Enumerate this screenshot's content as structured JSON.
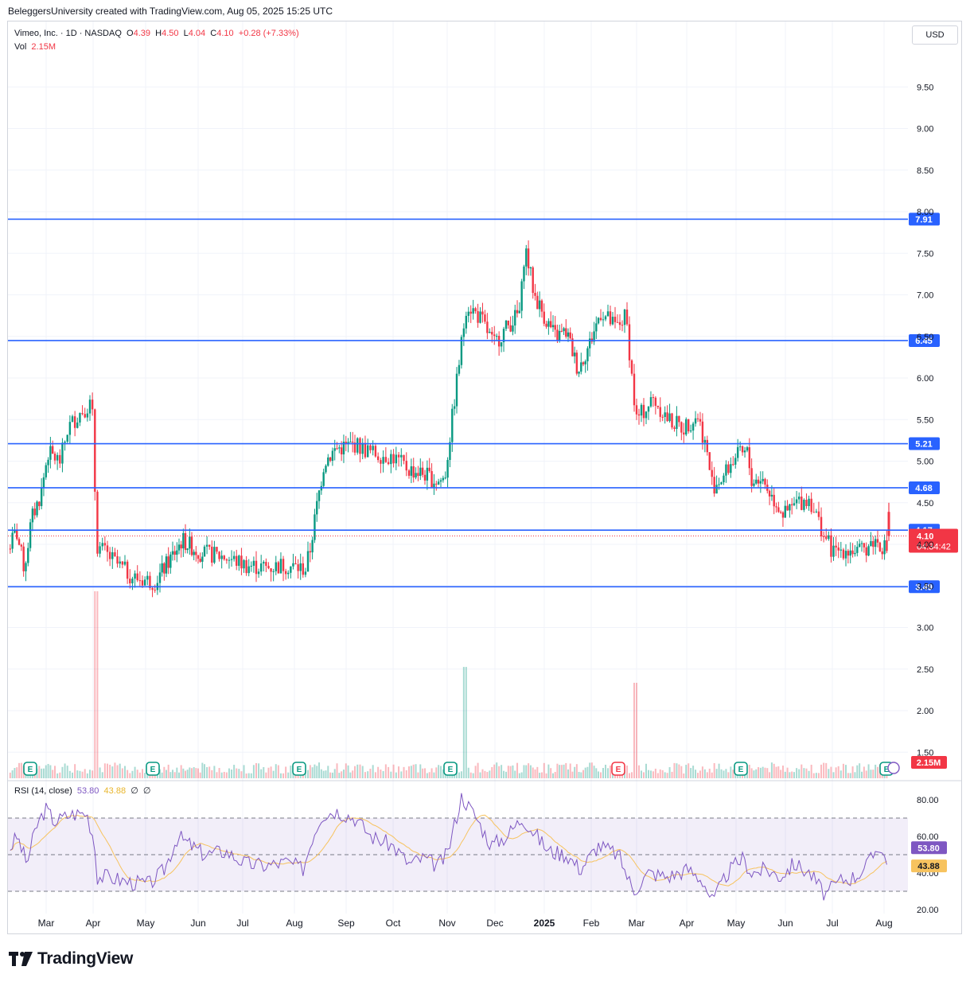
{
  "header": {
    "attribution": "BeleggersUniversity created with TradingView.com, Aug 05, 2025 15:25 UTC"
  },
  "legend": {
    "symbol": "Vimeo, Inc. · 1D · NASDAQ",
    "o_label": "O",
    "o": "4.39",
    "h_label": "H",
    "h": "4.50",
    "l_label": "L",
    "l": "4.04",
    "c_label": "C",
    "c": "4.10",
    "change": "+0.28 (+7.33%)",
    "vol_label": "Vol",
    "vol": "2.15M"
  },
  "currency_button": "USD",
  "rsi_legend": {
    "name": "RSI (14, close)",
    "rsi": "53.80",
    "ma": "43.88",
    "e1": "∅",
    "e2": "∅"
  },
  "branding": {
    "name": "TradingView"
  },
  "colors": {
    "up": "#089981",
    "down": "#f23645",
    "level": "#2962ff",
    "rsi": "#7e57c2",
    "rsi_ma": "#f7c35f",
    "price_badge": "#f23645"
  },
  "chart_data": {
    "type": "candlestick",
    "symbol": "Vimeo, Inc.",
    "interval": "1D",
    "exchange": "NASDAQ",
    "x_labels": [
      "Mar",
      "Apr",
      "May",
      "Jun",
      "Jul",
      "Aug",
      "Sep",
      "Oct",
      "Nov",
      "Dec",
      "2025",
      "Feb",
      "Mar",
      "Apr",
      "May",
      "Jun",
      "Jul",
      "Aug"
    ],
    "price_axis_ticks": [
      "9.50",
      "9.00",
      "8.50",
      "8.00",
      "7.50",
      "7.00",
      "6.50",
      "6.00",
      "5.50",
      "5.00",
      "4.50",
      "4.00",
      "3.50",
      "3.00",
      "2.50",
      "2.00",
      "1.50"
    ],
    "price_range": [
      1.3,
      9.9
    ],
    "horizontal_levels": [
      {
        "price": 7.91,
        "label": "7.91"
      },
      {
        "price": 6.45,
        "label": "6.45"
      },
      {
        "price": 5.21,
        "label": "5.21"
      },
      {
        "price": 4.68,
        "label": "4.68"
      },
      {
        "price": 4.17,
        "label": "4.17"
      },
      {
        "price": 3.49,
        "label": "3.49"
      }
    ],
    "last_price": {
      "label": "4.10",
      "countdown": "04:34:42"
    },
    "volume_badge": "2.15M",
    "price_path": [
      {
        "m": 0.0,
        "p": 3.95
      },
      {
        "m": 0.18,
        "p": 4.15
      },
      {
        "m": 0.35,
        "p": 3.7
      },
      {
        "m": 0.5,
        "p": 4.3
      },
      {
        "m": 0.7,
        "p": 4.6
      },
      {
        "m": 0.85,
        "p": 5.1
      },
      {
        "m": 1.1,
        "p": 5.0
      },
      {
        "m": 1.25,
        "p": 5.4
      },
      {
        "m": 1.5,
        "p": 5.6
      },
      {
        "m": 1.7,
        "p": 5.7
      },
      {
        "m": 1.75,
        "p": 5.1
      },
      {
        "m": 1.78,
        "p": 4.0
      },
      {
        "m": 1.95,
        "p": 3.9
      },
      {
        "m": 2.2,
        "p": 3.75
      },
      {
        "m": 2.5,
        "p": 3.6
      },
      {
        "m": 2.9,
        "p": 3.55
      },
      {
        "m": 3.2,
        "p": 3.8
      },
      {
        "m": 3.5,
        "p": 4.05
      },
      {
        "m": 3.9,
        "p": 3.9
      },
      {
        "m": 4.4,
        "p": 3.85
      },
      {
        "m": 4.8,
        "p": 3.75
      },
      {
        "m": 5.2,
        "p": 3.72
      },
      {
        "m": 5.55,
        "p": 3.75
      },
      {
        "m": 5.95,
        "p": 3.7
      },
      {
        "m": 6.05,
        "p": 3.95
      },
      {
        "m": 6.2,
        "p": 4.5
      },
      {
        "m": 6.35,
        "p": 5.0
      },
      {
        "m": 6.6,
        "p": 5.15
      },
      {
        "m": 7.0,
        "p": 5.2
      },
      {
        "m": 7.3,
        "p": 5.1
      },
      {
        "m": 7.7,
        "p": 5.05
      },
      {
        "m": 8.0,
        "p": 4.9
      },
      {
        "m": 8.3,
        "p": 4.85
      },
      {
        "m": 8.6,
        "p": 4.75
      },
      {
        "m": 8.75,
        "p": 4.8
      },
      {
        "m": 9.2,
        "p": 6.9
      },
      {
        "m": 9.5,
        "p": 6.7
      },
      {
        "m": 9.75,
        "p": 6.4
      },
      {
        "m": 10.0,
        "p": 6.6
      },
      {
        "m": 10.3,
        "p": 6.8
      },
      {
        "m": 10.4,
        "p": 7.6
      },
      {
        "m": 10.6,
        "p": 7.0
      },
      {
        "m": 10.85,
        "p": 6.7
      },
      {
        "m": 11.05,
        "p": 6.5
      },
      {
        "m": 11.3,
        "p": 6.55
      },
      {
        "m": 11.55,
        "p": 6.1
      },
      {
        "m": 11.8,
        "p": 6.4
      },
      {
        "m": 12.05,
        "p": 6.8
      },
      {
        "m": 12.35,
        "p": 6.6
      },
      {
        "m": 12.55,
        "p": 6.75
      },
      {
        "m": 12.75,
        "p": 5.5
      },
      {
        "m": 12.9,
        "p": 5.6
      },
      {
        "m": 13.1,
        "p": 5.75
      },
      {
        "m": 13.4,
        "p": 5.5
      },
      {
        "m": 13.7,
        "p": 5.4
      },
      {
        "m": 14.0,
        "p": 5.55
      },
      {
        "m": 14.15,
        "p": 5.2
      },
      {
        "m": 14.3,
        "p": 4.7
      },
      {
        "m": 14.5,
        "p": 4.8
      },
      {
        "m": 14.75,
        "p": 5.05
      },
      {
        "m": 15.0,
        "p": 5.1
      },
      {
        "m": 15.1,
        "p": 4.75
      },
      {
        "m": 15.3,
        "p": 4.8
      },
      {
        "m": 15.55,
        "p": 4.55
      },
      {
        "m": 15.8,
        "p": 4.35
      },
      {
        "m": 16.05,
        "p": 4.5
      },
      {
        "m": 16.3,
        "p": 4.55
      },
      {
        "m": 16.55,
        "p": 4.15
      },
      {
        "m": 16.75,
        "p": 3.9
      },
      {
        "m": 17.0,
        "p": 3.95
      },
      {
        "m": 17.3,
        "p": 3.9
      },
      {
        "m": 17.6,
        "p": 4.05
      },
      {
        "m": 17.85,
        "p": 3.95
      },
      {
        "m": 18.05,
        "p": 3.75
      },
      {
        "m": 18.12,
        "p": 3.82
      }
    ],
    "last_candle": {
      "o": 4.39,
      "h": 4.5,
      "l": 4.04,
      "c": 4.1
    },
    "rsi": {
      "name": "RSI (14, close)",
      "value": 53.8,
      "ma": 43.88,
      "axis_ticks": [
        "80.00",
        "60.00",
        "40.00",
        "20.00"
      ],
      "overbought": 70,
      "oversold": 30,
      "path": [
        {
          "m": 0.0,
          "v": 52
        },
        {
          "m": 0.2,
          "v": 60
        },
        {
          "m": 0.4,
          "v": 45
        },
        {
          "m": 0.6,
          "v": 65
        },
        {
          "m": 0.8,
          "v": 75
        },
        {
          "m": 1.0,
          "v": 68
        },
        {
          "m": 1.3,
          "v": 72
        },
        {
          "m": 1.6,
          "v": 73
        },
        {
          "m": 1.75,
          "v": 58
        },
        {
          "m": 1.8,
          "v": 38
        },
        {
          "m": 2.0,
          "v": 38
        },
        {
          "m": 2.4,
          "v": 35
        },
        {
          "m": 2.8,
          "v": 34
        },
        {
          "m": 3.1,
          "v": 42
        },
        {
          "m": 3.4,
          "v": 60
        },
        {
          "m": 3.7,
          "v": 55
        },
        {
          "m": 4.0,
          "v": 50
        },
        {
          "m": 4.4,
          "v": 52
        },
        {
          "m": 4.8,
          "v": 45
        },
        {
          "m": 5.2,
          "v": 44
        },
        {
          "m": 5.6,
          "v": 46
        },
        {
          "m": 5.9,
          "v": 42
        },
        {
          "m": 6.1,
          "v": 60
        },
        {
          "m": 6.3,
          "v": 72
        },
        {
          "m": 6.6,
          "v": 74
        },
        {
          "m": 7.0,
          "v": 70
        },
        {
          "m": 7.3,
          "v": 60
        },
        {
          "m": 7.7,
          "v": 55
        },
        {
          "m": 8.0,
          "v": 45
        },
        {
          "m": 8.3,
          "v": 48
        },
        {
          "m": 8.6,
          "v": 44
        },
        {
          "m": 8.8,
          "v": 50
        },
        {
          "m": 9.1,
          "v": 82
        },
        {
          "m": 9.4,
          "v": 70
        },
        {
          "m": 9.7,
          "v": 55
        },
        {
          "m": 10.0,
          "v": 60
        },
        {
          "m": 10.35,
          "v": 70
        },
        {
          "m": 10.6,
          "v": 62
        },
        {
          "m": 10.9,
          "v": 52
        },
        {
          "m": 11.3,
          "v": 50
        },
        {
          "m": 11.6,
          "v": 42
        },
        {
          "m": 12.0,
          "v": 55
        },
        {
          "m": 12.4,
          "v": 50
        },
        {
          "m": 12.7,
          "v": 30
        },
        {
          "m": 13.0,
          "v": 40
        },
        {
          "m": 13.4,
          "v": 38
        },
        {
          "m": 13.8,
          "v": 42
        },
        {
          "m": 14.1,
          "v": 36
        },
        {
          "m": 14.3,
          "v": 24
        },
        {
          "m": 14.6,
          "v": 40
        },
        {
          "m": 14.9,
          "v": 48
        },
        {
          "m": 15.1,
          "v": 40
        },
        {
          "m": 15.4,
          "v": 42
        },
        {
          "m": 15.7,
          "v": 38
        },
        {
          "m": 16.0,
          "v": 45
        },
        {
          "m": 16.3,
          "v": 40
        },
        {
          "m": 16.6,
          "v": 28
        },
        {
          "m": 16.9,
          "v": 36
        },
        {
          "m": 17.2,
          "v": 38
        },
        {
          "m": 17.5,
          "v": 46
        },
        {
          "m": 17.7,
          "v": 56
        },
        {
          "m": 17.9,
          "v": 42
        },
        {
          "m": 18.0,
          "v": 30
        },
        {
          "m": 18.12,
          "v": 53.8
        }
      ]
    }
  }
}
